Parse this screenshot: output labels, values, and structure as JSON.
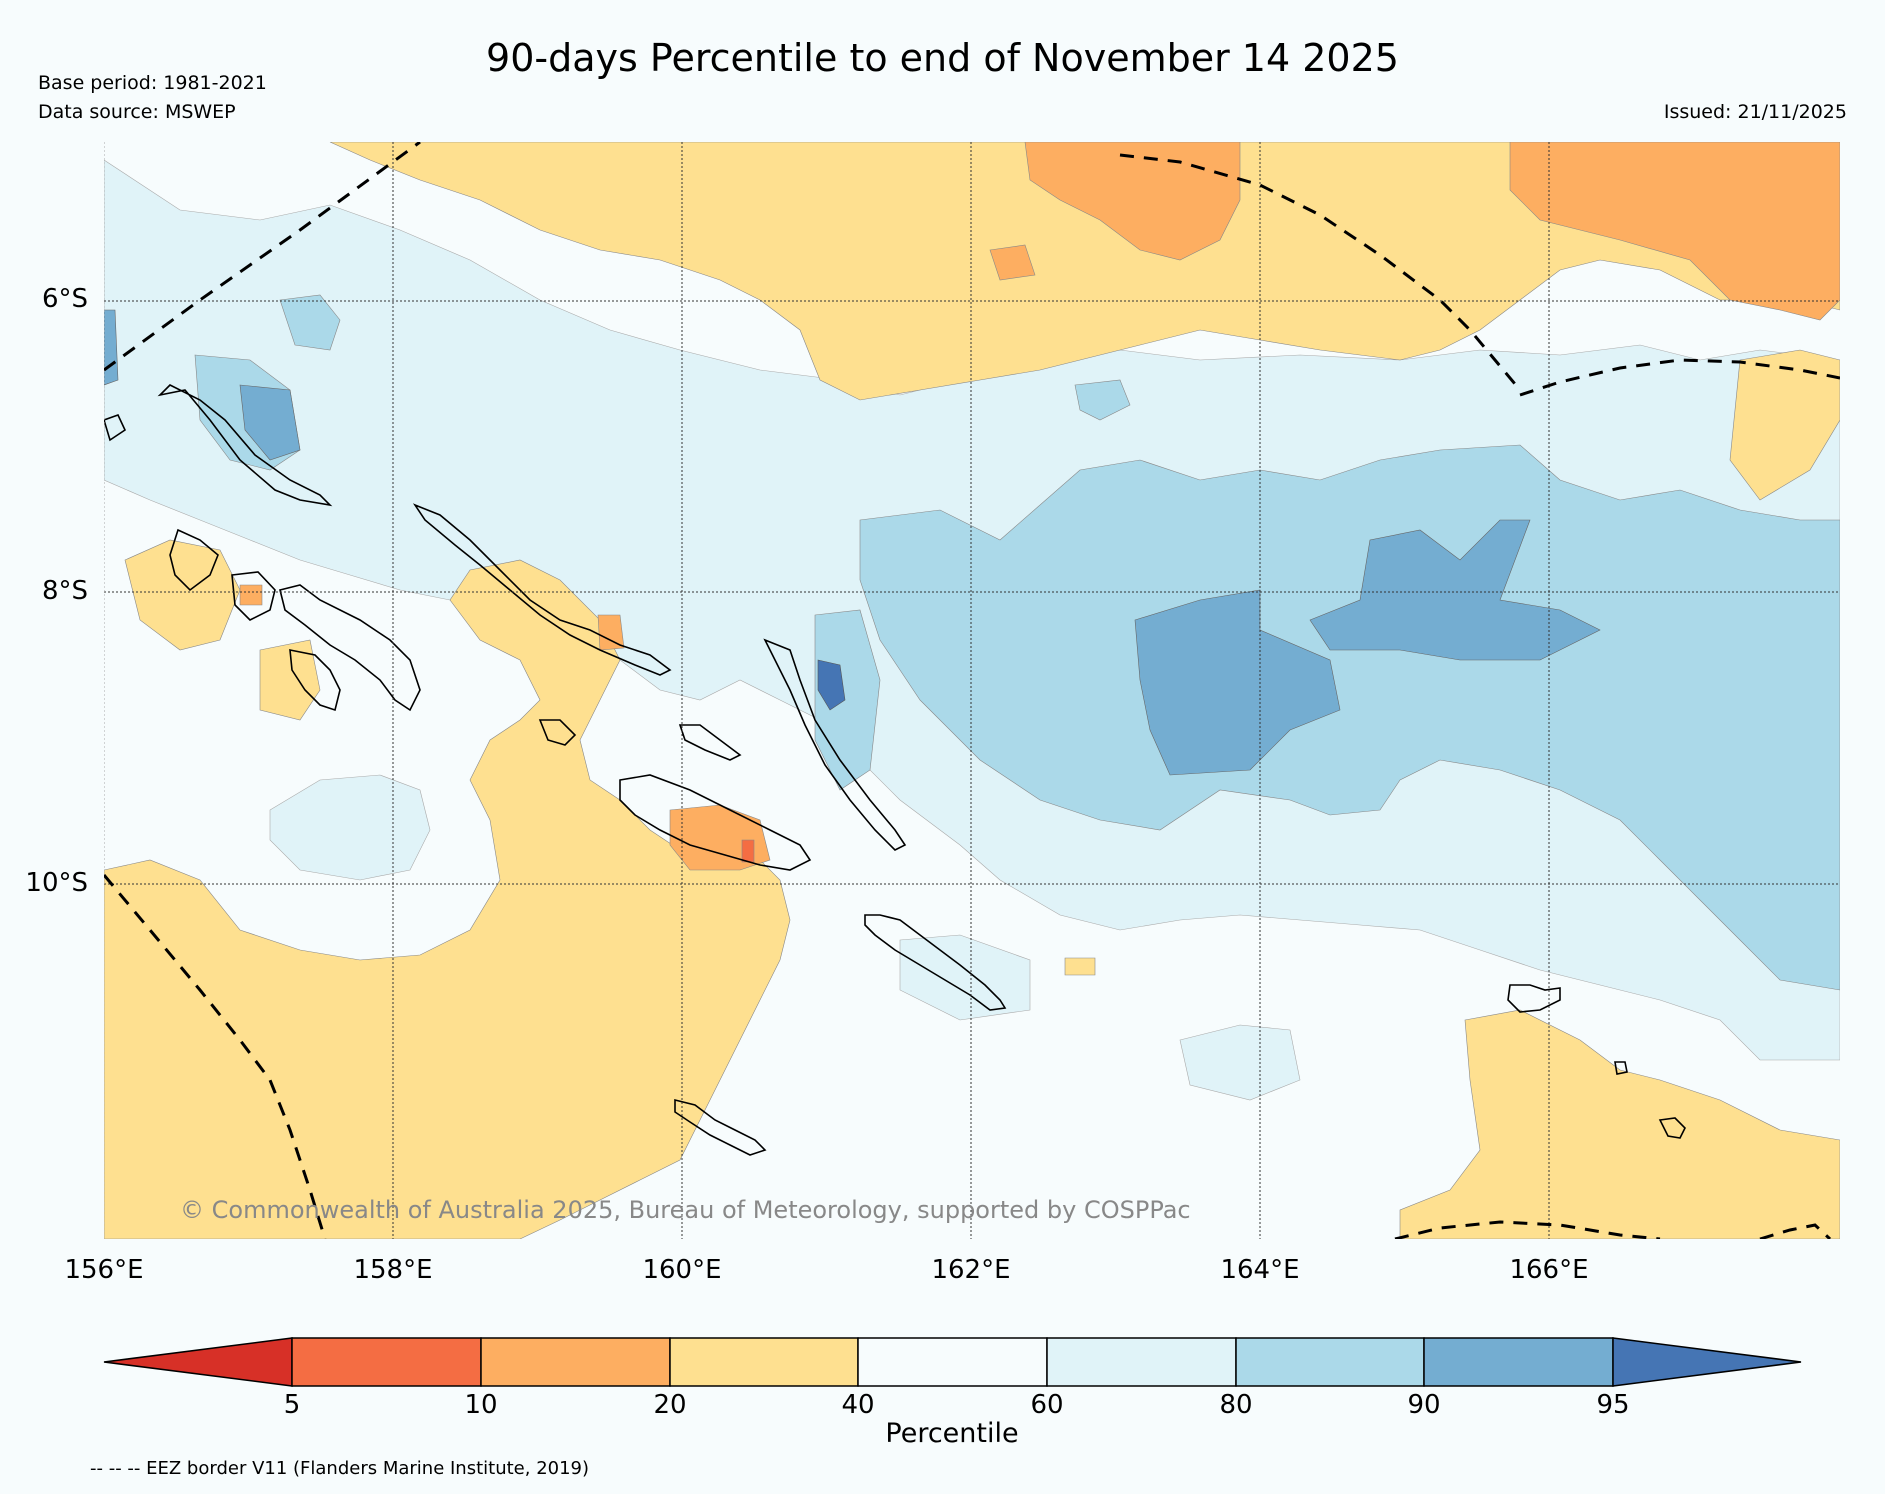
{
  "header": {
    "title": "90-days Percentile to end of November 14 2025",
    "base_period": "Base period: 1981-2021",
    "data_source": "Data source: MSWEP",
    "issued": "Issued: 21/11/2025"
  },
  "map": {
    "lat_labels": [
      "6°S",
      "8°S",
      "10°S"
    ],
    "lon_labels": [
      "156°E",
      "158°E",
      "160°E",
      "162°E",
      "164°E",
      "166°E"
    ],
    "copyright": "© Commonwealth of Australia 2025, Bureau of Meteorology, supported by COSPPac",
    "extent": {
      "lon_min": 156,
      "lon_max": 168,
      "lat_min": -12.4,
      "lat_max": -4.9
    }
  },
  "legend": {
    "title": "Percentile",
    "tick_labels": [
      "5",
      "10",
      "20",
      "40",
      "60",
      "80",
      "90",
      "95"
    ],
    "colors": [
      "#d73027",
      "#f46d43",
      "#fdae61",
      "#fee090",
      "#f7fcfd",
      "#e0f3f8",
      "#abd9e9",
      "#74add1",
      "#4575b4"
    ],
    "eez_note": "-- -- -- EEZ border V11 (Flanders Marine Institute, 2019)"
  },
  "colors": {
    "background": "#f7fcfd",
    "dry_20_40": "#fee090",
    "dry_10_20": "#fdae61",
    "dry_5_10": "#f46d43",
    "wet_60_80": "#e0f3f8",
    "wet_80_90": "#abd9e9",
    "wet_90_95": "#74add1",
    "wet_95": "#4575b4"
  }
}
